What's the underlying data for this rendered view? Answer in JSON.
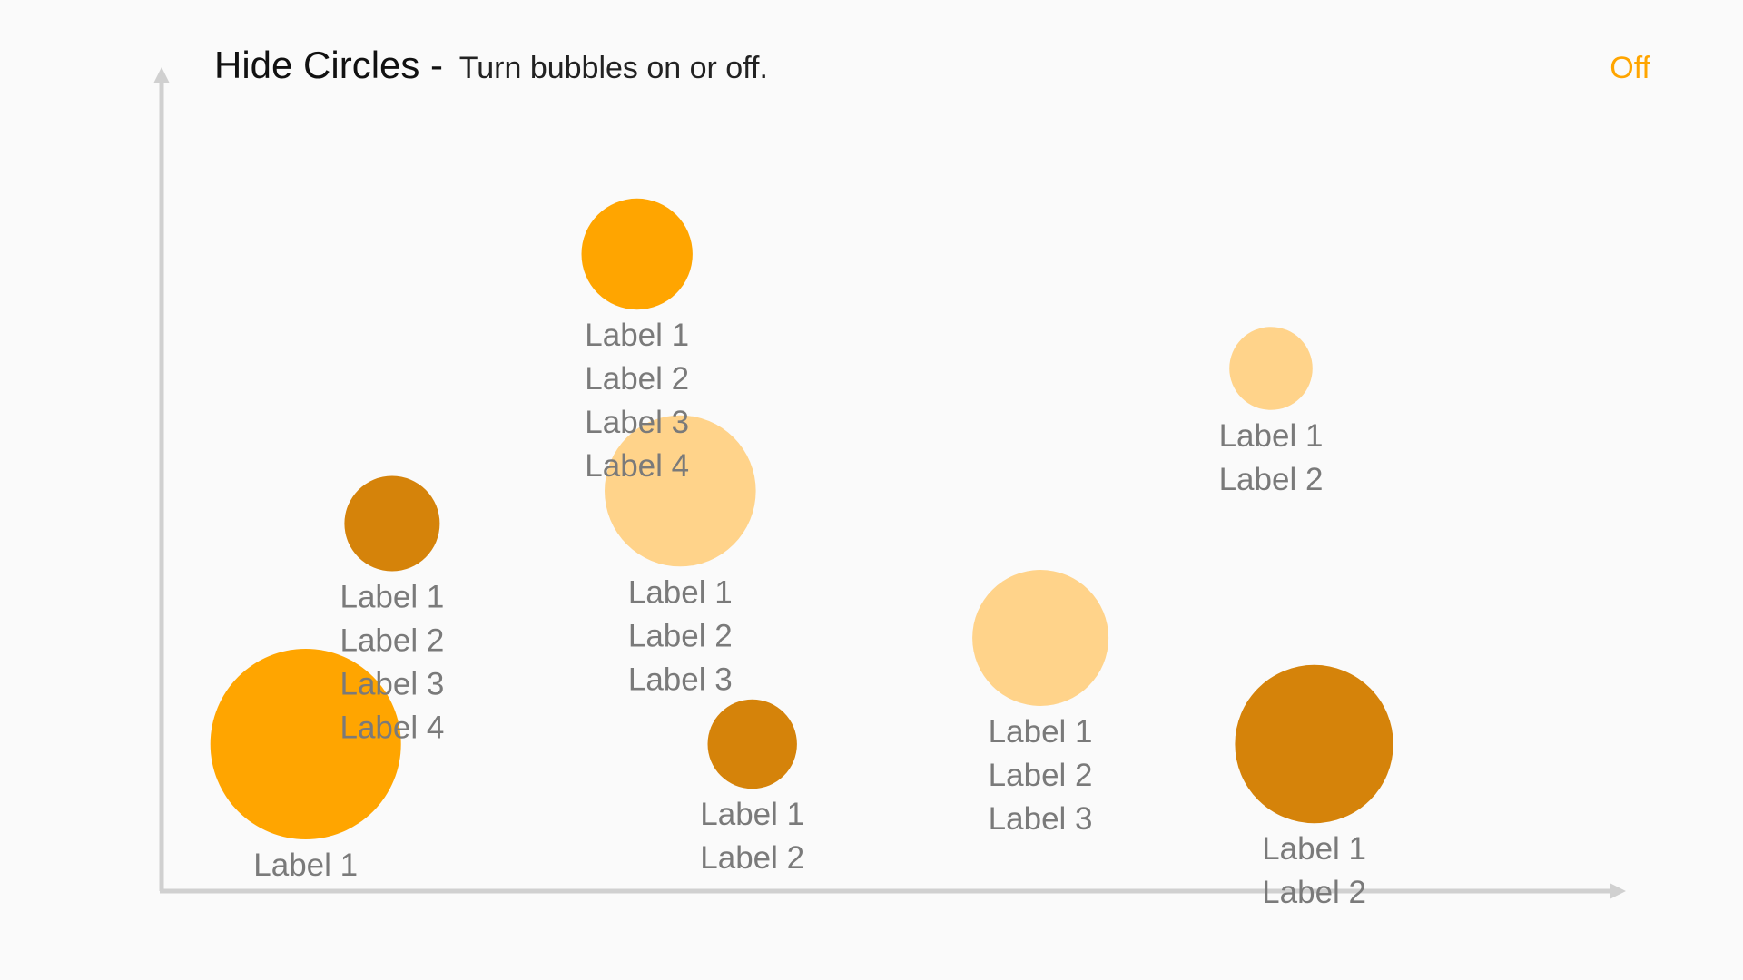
{
  "header": {
    "title": "Hide Circles",
    "separator": " - ",
    "subtitle": "Turn bubbles on or off.",
    "toggle_label": "Off"
  },
  "colors": {
    "accent": "#FFA500",
    "bubble_dark": "#D5830A",
    "bubble_bright": "#FFA500",
    "bubble_light": "#FFD38A",
    "axis": "#D0D0D0",
    "label_text": "#7A7A7A"
  },
  "chart_data": {
    "type": "scatter",
    "title": "Hide Circles",
    "subtitle": "Turn bubbles on or off.",
    "xlabel": "",
    "ylabel": "",
    "xlim": [
      0,
      100
    ],
    "ylim": [
      0,
      100
    ],
    "grid": false,
    "legend": "none",
    "size_max": 100,
    "points": [
      {
        "x": 10,
        "y": 18,
        "size": 100,
        "color": "#FFA500",
        "labels": [
          "Label 1"
        ]
      },
      {
        "x": 16,
        "y": 45,
        "size": 25,
        "color": "#D5830A",
        "labels": [
          "Label 1",
          "Label 2",
          "Label 3",
          "Label 4"
        ]
      },
      {
        "x": 33,
        "y": 78,
        "size": 34,
        "color": "#FFA500",
        "labels": [
          "Label 1",
          "Label 2",
          "Label 3",
          "Label 4"
        ]
      },
      {
        "x": 36,
        "y": 49,
        "size": 63,
        "color": "#FFD38A",
        "labels": [
          "Label 1",
          "Label 2",
          "Label 3"
        ]
      },
      {
        "x": 41,
        "y": 18,
        "size": 22,
        "color": "#D5830A",
        "labels": [
          "Label 1",
          "Label 2"
        ]
      },
      {
        "x": 61,
        "y": 31,
        "size": 51,
        "color": "#FFD38A",
        "labels": [
          "Label 1",
          "Label 2",
          "Label 3"
        ]
      },
      {
        "x": 77,
        "y": 64,
        "size": 19,
        "color": "#FFD38A",
        "labels": [
          "Label 1",
          "Label 2"
        ]
      },
      {
        "x": 80,
        "y": 18,
        "size": 69,
        "color": "#D5830A",
        "labels": [
          "Label 1",
          "Label 2"
        ]
      }
    ]
  }
}
